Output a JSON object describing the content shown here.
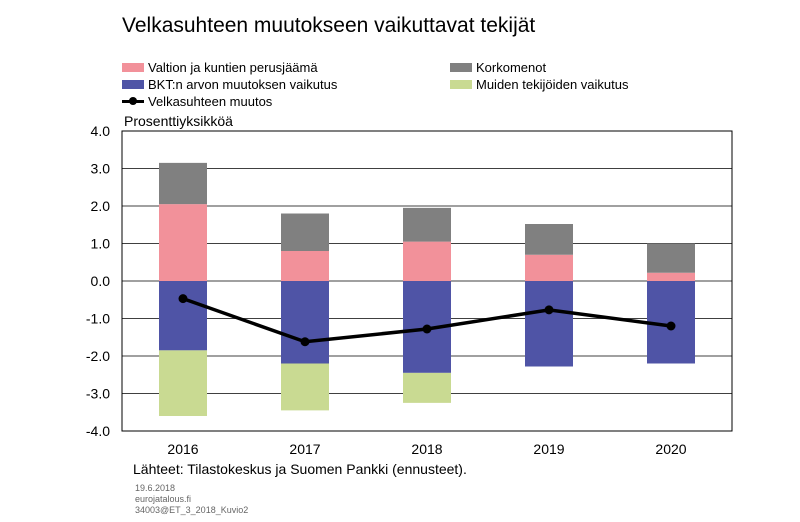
{
  "chart_data": {
    "type": "bar",
    "stacked": true,
    "title": "Velkasuhteen muutokseen vaikuttavat tekijät",
    "ylabel": "Prosenttiyksikköä",
    "xlabel": "",
    "ylim": [
      -4.0,
      4.0
    ],
    "yticks": [
      "4.0",
      "3.0",
      "2.0",
      "1.0",
      "0.0",
      "-1.0",
      "-2.0",
      "-3.0",
      "-4.0"
    ],
    "ytick_values": [
      4,
      3,
      2,
      1,
      0,
      -1,
      -2,
      -3,
      -4
    ],
    "categories": [
      "2016",
      "2017",
      "2018",
      "2019",
      "2020"
    ],
    "grid": "horizontal",
    "legend_position": "top",
    "series": [
      {
        "name": "Valtion ja kuntien perusjäämä",
        "kind": "bar",
        "color": "#f2919a",
        "values": [
          2.05,
          0.8,
          1.05,
          0.7,
          0.22
        ]
      },
      {
        "name": "Korkomenot",
        "kind": "bar",
        "color": "#808080",
        "values": [
          1.1,
          1.0,
          0.9,
          0.82,
          0.78
        ]
      },
      {
        "name": "BKT:n arvon muutoksen vaikutus",
        "kind": "bar",
        "color": "#4f54a6",
        "values": [
          -1.85,
          -2.2,
          -2.45,
          -2.28,
          -2.2
        ]
      },
      {
        "name": "Muiden tekijöiden vaikutus",
        "kind": "bar",
        "color": "#c9da92",
        "values": [
          -1.75,
          -1.25,
          -0.8,
          0.0,
          0.0
        ]
      },
      {
        "name": "Velkasuhteen muutos",
        "kind": "line",
        "color": "#000000",
        "values": [
          -0.47,
          -1.62,
          -1.28,
          -0.77,
          -1.2
        ]
      }
    ]
  },
  "footer": {
    "source": "Lähteet: Tilastokeskus ja Suomen Pankki (ennusteet).",
    "date": "19.6.2018",
    "site": "eurojatalous.fi",
    "code": "34003@ET_3_2018_Kuvio2"
  }
}
